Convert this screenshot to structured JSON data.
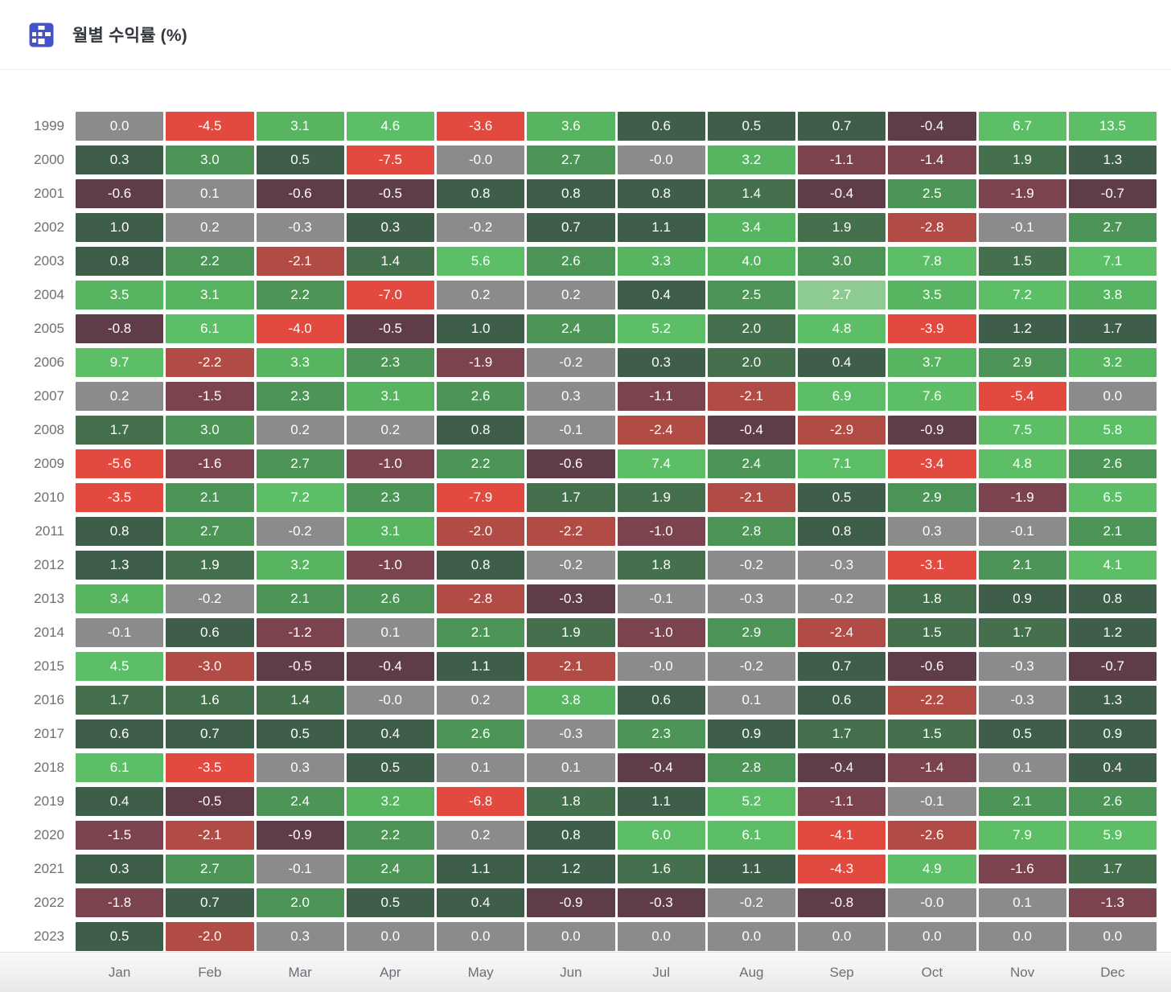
{
  "header": {
    "title": "월별 수익률 (%)",
    "icon": "table-grid-icon",
    "icon_color": "#4353cb"
  },
  "chart_data": {
    "type": "heatmap",
    "title": "월별 수익률 (%)",
    "x": [
      "Jan",
      "Feb",
      "Mar",
      "Apr",
      "May",
      "Jun",
      "Jul",
      "Aug",
      "Sep",
      "Oct",
      "Nov",
      "Dec"
    ],
    "y": [
      "1999",
      "2000",
      "2001",
      "2002",
      "2003",
      "2004",
      "2005",
      "2006",
      "2007",
      "2008",
      "2009",
      "2010",
      "2011",
      "2012",
      "2013",
      "2014",
      "2015",
      "2016",
      "2017",
      "2018",
      "2019",
      "2020",
      "2021",
      "2022",
      "2023"
    ],
    "legend": "none",
    "grid": "off",
    "palette": {
      "n": "#8b8b8b",
      "g1": "#3e5e4a",
      "g2": "#45704e",
      "g3": "#4d9556",
      "g4": "#57b562",
      "g5": "#5cbf67",
      "g6": "#8ecb93",
      "r1": "#5e3d49",
      "r2": "#7b434d",
      "r3": "#b04b45",
      "r4": "#e24a40"
    },
    "rows": [
      [
        "0.0|n",
        "-4.5|r4",
        "3.1|g4",
        "4.6|g5",
        "-3.6|r4",
        "3.6|g4",
        "0.6|g1",
        "0.5|g1",
        "0.7|g1",
        "-0.4|r1",
        "6.7|g5",
        "13.5|g5"
      ],
      [
        "0.3|g1",
        "3.0|g3",
        "0.5|g1",
        "-7.5|r4",
        "-0.0|n",
        "2.7|g3",
        "-0.0|n",
        "3.2|g4",
        "-1.1|r2",
        "-1.4|r2",
        "1.9|g2",
        "1.3|g1"
      ],
      [
        "-0.6|r1",
        "0.1|n",
        "-0.6|r1",
        "-0.5|r1",
        "0.8|g1",
        "0.8|g1",
        "0.8|g1",
        "1.4|g2",
        "-0.4|r1",
        "2.5|g3",
        "-1.9|r2",
        "-0.7|r1"
      ],
      [
        "1.0|g1",
        "0.2|n",
        "-0.3|n",
        "0.3|g1",
        "-0.2|n",
        "0.7|g1",
        "1.1|g1",
        "3.4|g4",
        "1.9|g2",
        "-2.8|r3",
        "-0.1|n",
        "2.7|g3"
      ],
      [
        "0.8|g1",
        "2.2|g3",
        "-2.1|r3",
        "1.4|g2",
        "5.6|g5",
        "2.6|g3",
        "3.3|g4",
        "4.0|g4",
        "3.0|g3",
        "7.8|g5",
        "1.5|g2",
        "7.1|g5"
      ],
      [
        "3.5|g4",
        "3.1|g4",
        "2.2|g3",
        "-7.0|r4",
        "0.2|n",
        "0.2|n",
        "0.4|g1",
        "2.5|g3",
        "2.7|g6",
        "3.5|g4",
        "7.2|g5",
        "3.8|g4"
      ],
      [
        "-0.8|r1",
        "6.1|g5",
        "-4.0|r4",
        "-0.5|r1",
        "1.0|g1",
        "2.4|g3",
        "5.2|g5",
        "2.0|g2",
        "4.8|g5",
        "-3.9|r4",
        "1.2|g1",
        "1.7|g1"
      ],
      [
        "9.7|g5",
        "-2.2|r3",
        "3.3|g4",
        "2.3|g3",
        "-1.9|r2",
        "-0.2|n",
        "0.3|g1",
        "2.0|g2",
        "0.4|g1",
        "3.7|g4",
        "2.9|g3",
        "3.2|g4"
      ],
      [
        "0.2|n",
        "-1.5|r2",
        "2.3|g3",
        "3.1|g4",
        "2.6|g3",
        "0.3|n",
        "-1.1|r2",
        "-2.1|r3",
        "6.9|g5",
        "7.6|g5",
        "-5.4|r4",
        "0.0|n"
      ],
      [
        "1.7|g2",
        "3.0|g3",
        "0.2|n",
        "0.2|n",
        "0.8|g1",
        "-0.1|n",
        "-2.4|r3",
        "-0.4|r1",
        "-2.9|r3",
        "-0.9|r1",
        "7.5|g5",
        "5.8|g5"
      ],
      [
        "-5.6|r4",
        "-1.6|r2",
        "2.7|g3",
        "-1.0|r2",
        "2.2|g3",
        "-0.6|r1",
        "7.4|g5",
        "2.4|g3",
        "7.1|g5",
        "-3.4|r4",
        "4.8|g5",
        "2.6|g3"
      ],
      [
        "-3.5|r4",
        "2.1|g3",
        "7.2|g5",
        "2.3|g3",
        "-7.9|r4",
        "1.7|g2",
        "1.9|g2",
        "-2.1|r3",
        "0.5|g1",
        "2.9|g3",
        "-1.9|r2",
        "6.5|g5"
      ],
      [
        "0.8|g1",
        "2.7|g3",
        "-0.2|n",
        "3.1|g4",
        "-2.0|r3",
        "-2.2|r3",
        "-1.0|r2",
        "2.8|g3",
        "0.8|g1",
        "0.3|n",
        "-0.1|n",
        "2.1|g3"
      ],
      [
        "1.3|g1",
        "1.9|g2",
        "3.2|g4",
        "-1.0|r2",
        "0.8|g1",
        "-0.2|n",
        "1.8|g2",
        "-0.2|n",
        "-0.3|n",
        "-3.1|r4",
        "2.1|g3",
        "4.1|g5"
      ],
      [
        "3.4|g4",
        "-0.2|n",
        "2.1|g3",
        "2.6|g3",
        "-2.8|r3",
        "-0.3|r1",
        "-0.1|n",
        "-0.3|n",
        "-0.2|n",
        "1.8|g2",
        "0.9|g1",
        "0.8|g1"
      ],
      [
        "-0.1|n",
        "0.6|g1",
        "-1.2|r2",
        "0.1|n",
        "2.1|g3",
        "1.9|g2",
        "-1.0|r2",
        "2.9|g3",
        "-2.4|r3",
        "1.5|g2",
        "1.7|g2",
        "1.2|g1"
      ],
      [
        "4.5|g5",
        "-3.0|r3",
        "-0.5|r1",
        "-0.4|r1",
        "1.1|g1",
        "-2.1|r3",
        "-0.0|n",
        "-0.2|n",
        "0.7|g1",
        "-0.6|r1",
        "-0.3|n",
        "-0.7|r1"
      ],
      [
        "1.7|g2",
        "1.6|g2",
        "1.4|g2",
        "-0.0|n",
        "0.2|n",
        "3.8|g4",
        "0.6|g1",
        "0.1|n",
        "0.6|g1",
        "-2.2|r3",
        "-0.3|n",
        "1.3|g1"
      ],
      [
        "0.6|g1",
        "0.7|g1",
        "0.5|g1",
        "0.4|g1",
        "2.6|g3",
        "-0.3|n",
        "2.3|g3",
        "0.9|g1",
        "1.7|g2",
        "1.5|g2",
        "0.5|g1",
        "0.9|g1"
      ],
      [
        "6.1|g5",
        "-3.5|r4",
        "0.3|n",
        "0.5|g1",
        "0.1|n",
        "0.1|n",
        "-0.4|r1",
        "2.8|g3",
        "-0.4|r1",
        "-1.4|r2",
        "0.1|n",
        "0.4|g1"
      ],
      [
        "0.4|g1",
        "-0.5|r1",
        "2.4|g3",
        "3.2|g4",
        "-6.8|r4",
        "1.8|g2",
        "1.1|g1",
        "5.2|g5",
        "-1.1|r2",
        "-0.1|n",
        "2.1|g3",
        "2.6|g3"
      ],
      [
        "-1.5|r2",
        "-2.1|r3",
        "-0.9|r1",
        "2.2|g3",
        "0.2|n",
        "0.8|g1",
        "6.0|g5",
        "6.1|g5",
        "-4.1|r4",
        "-2.6|r3",
        "7.9|g5",
        "5.9|g5"
      ],
      [
        "0.3|g1",
        "2.7|g3",
        "-0.1|n",
        "2.4|g3",
        "1.1|g1",
        "1.2|g1",
        "1.6|g2",
        "1.1|g1",
        "-4.3|r4",
        "4.9|g5",
        "-1.6|r2",
        "1.7|g2"
      ],
      [
        "-1.8|r2",
        "0.7|g1",
        "2.0|g3",
        "0.5|g1",
        "0.4|g1",
        "-0.9|r1",
        "-0.3|r1",
        "-0.2|n",
        "-0.8|r1",
        "-0.0|n",
        "0.1|n",
        "-1.3|r2"
      ],
      [
        "0.5|g1",
        "-2.0|r3",
        "0.3|n",
        "0.0|n",
        "0.0|n",
        "0.0|n",
        "0.0|n",
        "0.0|n",
        "0.0|n",
        "0.0|n",
        "0.0|n",
        "0.0|n"
      ]
    ]
  }
}
